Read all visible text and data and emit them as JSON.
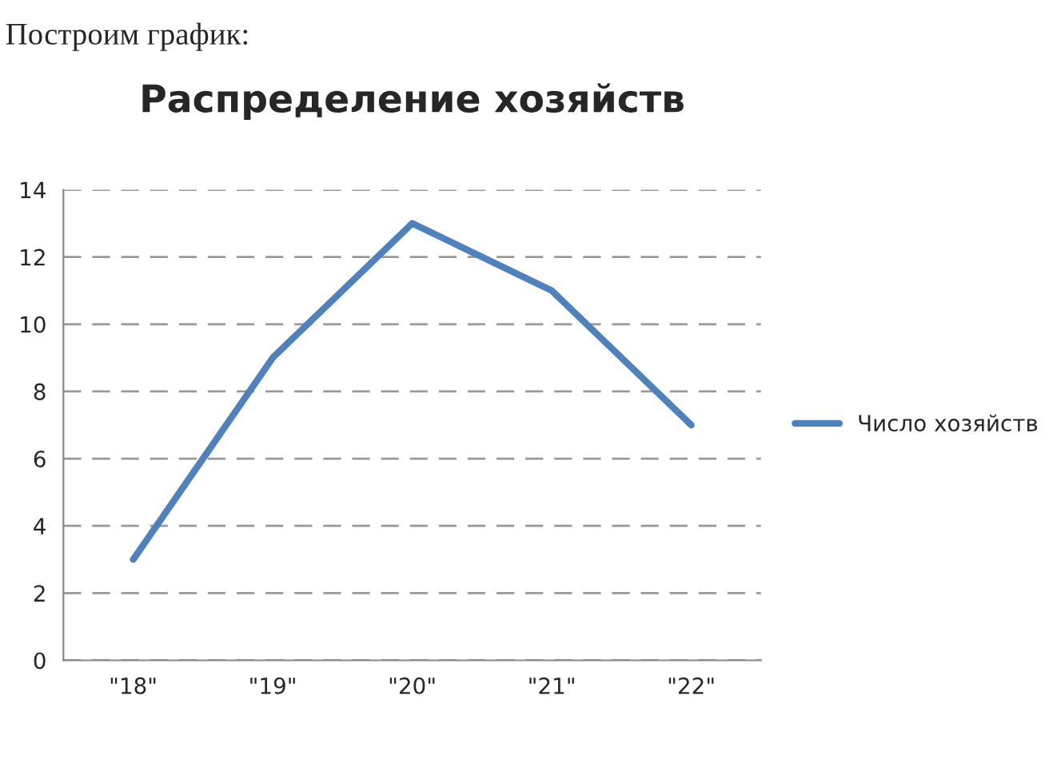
{
  "chart_data": {
    "type": "line",
    "title": "Распределение хозяйств",
    "annotations": [
      "Построим график:"
    ],
    "categories": [
      "\"18\"",
      "\"19\"",
      "\"20\"",
      "\"21\"",
      "\"22\""
    ],
    "series": [
      {
        "name": "Число хозяйств",
        "color": "#4f81bd",
        "values": [
          3,
          9,
          13,
          11,
          7
        ]
      }
    ],
    "ylim": [
      0,
      14
    ],
    "yticks": [
      0,
      2,
      4,
      6,
      8,
      10,
      12,
      14
    ],
    "grid": "y",
    "legend": "right",
    "marker": "none",
    "line_style": "solid"
  }
}
